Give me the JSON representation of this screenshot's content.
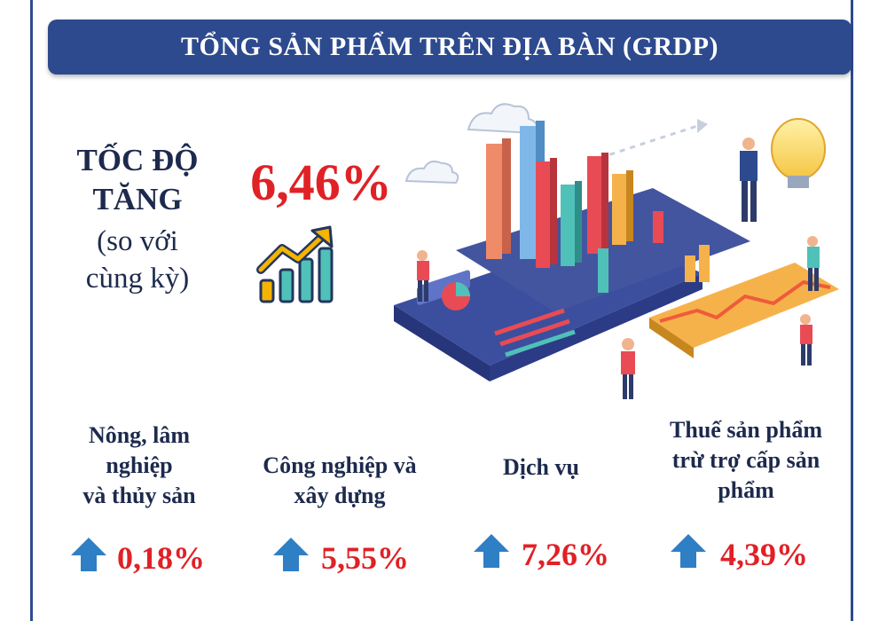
{
  "header": {
    "title": "TỔNG SẢN PHẨM TRÊN ĐỊA BÀN (GRDP)"
  },
  "growth": {
    "label_line1": "TỐC ĐỘ",
    "label_line2": "TĂNG",
    "sub_line1": "(so với",
    "sub_line2": "cùng kỳ)",
    "value": "6,46%"
  },
  "sectors": [
    {
      "label_line1": "Nông, lâm",
      "label_line2": "nghiệp",
      "label_line3": "và thủy sản",
      "value": "0,18%"
    },
    {
      "label_line1": "Công nghiệp và",
      "label_line2": "xây dựng",
      "value": "5,55%"
    },
    {
      "label_line1": "Dịch vụ",
      "value": "7,26%"
    },
    {
      "label_line1": "Thuế sản phẩm",
      "label_line2": "trừ trợ cấp sản",
      "label_line3": "phẩm",
      "value": "4,39%"
    }
  ],
  "colors": {
    "title_bar": "#2d4a8e",
    "value_red": "#e02126",
    "label_navy": "#1d2a4d",
    "arrow_blue": "#2f7fc4"
  },
  "icons": {
    "growth": "growth-chart-icon",
    "sector_arrow": "arrow-up-icon"
  }
}
